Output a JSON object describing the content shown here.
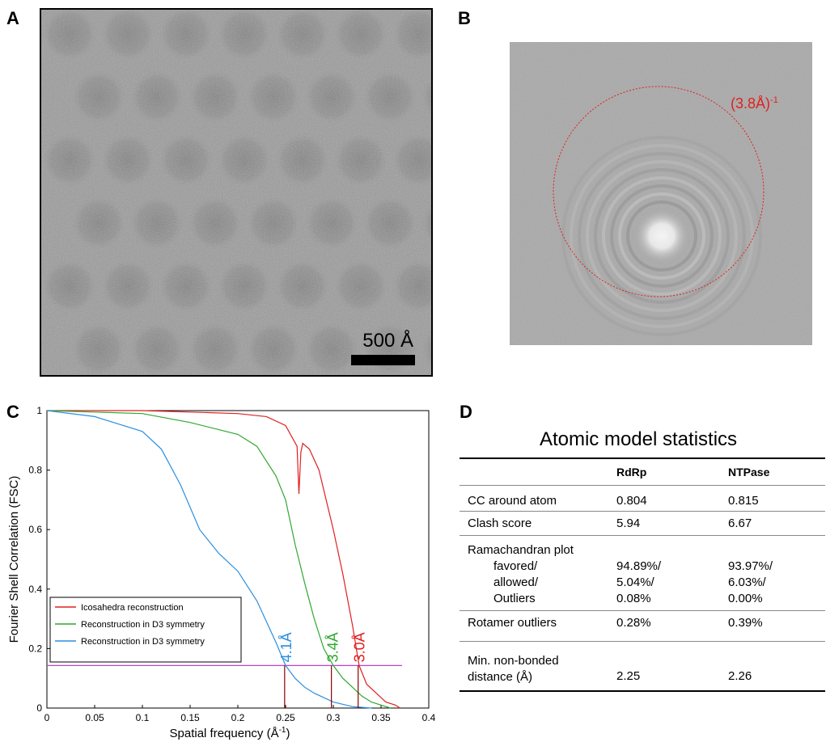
{
  "panels": {
    "a": "A",
    "b": "B",
    "c": "C",
    "d": "D"
  },
  "micrograph": {
    "scale_label": "500 Å"
  },
  "fft": {
    "ring_label": "(3.8Å)",
    "ring_label_sup": "-1",
    "ring_color": "#e02020"
  },
  "chart_data": {
    "type": "line",
    "xlabel": "Spatial frequency (Å",
    "xlabel_sup": "-1",
    "xlabel_end": ")",
    "ylabel": "Fourier Shell Correlation (FSC)",
    "xlim": [
      0,
      0.4
    ],
    "ylim": [
      0,
      1
    ],
    "x_ticks": [
      "0",
      "0.05",
      "0.1",
      "0.15",
      "0.2",
      "0.25",
      "0.3",
      "0.35",
      "0.4"
    ],
    "y_ticks": [
      "0",
      "0.2",
      "0.4",
      "0.6",
      "0.8",
      "1"
    ],
    "threshold": 0.143,
    "threshold_color": "#c040d0",
    "legend": [
      {
        "label": "Icosahedra reconstruction",
        "color": "#e02020"
      },
      {
        "label": "Reconstruction in D3 symmetry",
        "color": "#2ea82e"
      },
      {
        "label": "Reconstruction in D3 symmetry",
        "color": "#2a8fe0"
      }
    ],
    "series": [
      {
        "color": "#e02020",
        "x": [
          0,
          0.05,
          0.1,
          0.15,
          0.2,
          0.23,
          0.25,
          0.262,
          0.264,
          0.266,
          0.268,
          0.275,
          0.285,
          0.3,
          0.31,
          0.32,
          0.327,
          0.335,
          0.345,
          0.355,
          0.365,
          0.37
        ],
        "y": [
          1,
          1,
          1,
          0.995,
          0.99,
          0.98,
          0.95,
          0.88,
          0.72,
          0.86,
          0.89,
          0.87,
          0.8,
          0.6,
          0.45,
          0.28,
          0.143,
          0.08,
          0.05,
          0.02,
          0.01,
          0
        ]
      },
      {
        "color": "#2ea82e",
        "x": [
          0,
          0.05,
          0.1,
          0.15,
          0.2,
          0.22,
          0.24,
          0.25,
          0.26,
          0.27,
          0.28,
          0.29,
          0.3,
          0.31,
          0.32,
          0.33,
          0.34,
          0.35,
          0.36
        ],
        "y": [
          1,
          0.995,
          0.99,
          0.96,
          0.92,
          0.88,
          0.78,
          0.7,
          0.55,
          0.42,
          0.3,
          0.2,
          0.143,
          0.1,
          0.07,
          0.04,
          0.02,
          0.01,
          0
        ]
      },
      {
        "color": "#2a8fe0",
        "x": [
          0,
          0.05,
          0.1,
          0.12,
          0.14,
          0.16,
          0.18,
          0.2,
          0.22,
          0.24,
          0.25,
          0.26,
          0.27,
          0.28,
          0.3,
          0.32,
          0.34
        ],
        "y": [
          1,
          0.98,
          0.93,
          0.87,
          0.75,
          0.6,
          0.52,
          0.46,
          0.36,
          0.22,
          0.143,
          0.1,
          0.07,
          0.05,
          0.02,
          0.005,
          0
        ]
      }
    ],
    "resolutions": [
      {
        "label": "4.1Å",
        "x": 0.249,
        "color": "#2a8fe0"
      },
      {
        "label": "3.4Å",
        "x": 0.298,
        "color": "#2ea82e"
      },
      {
        "label": "3.0Å",
        "x": 0.326,
        "color": "#e02020"
      }
    ]
  },
  "stats": {
    "title": "Atomic model statistics",
    "headers": [
      "",
      "RdRp",
      "NTPase"
    ],
    "cc": {
      "label": "CC around atom",
      "rdrp": "0.804",
      "ntpase": "0.815"
    },
    "clash": {
      "label": "Clash score",
      "rdrp": "5.94",
      "ntpase": "6.67"
    },
    "rama": {
      "label": "Ramachandran plot",
      "favored": {
        "label": "favored/",
        "rdrp": "94.89%/",
        "ntpase": "93.97%/"
      },
      "allowed": {
        "label": "allowed/",
        "rdrp": "5.04%/",
        "ntpase": "6.03%/"
      },
      "outliers": {
        "label": "Outliers",
        "rdrp": "0.08%",
        "ntpase": "0.00%"
      }
    },
    "rotamer": {
      "label": "Rotamer outliers",
      "rdrp": "0.28%",
      "ntpase": "0.39%"
    },
    "nonbonded": {
      "label1": "Min. non-bonded",
      "label2": "distance (Å)",
      "rdrp": "2.25",
      "ntpase": "2.26"
    }
  }
}
